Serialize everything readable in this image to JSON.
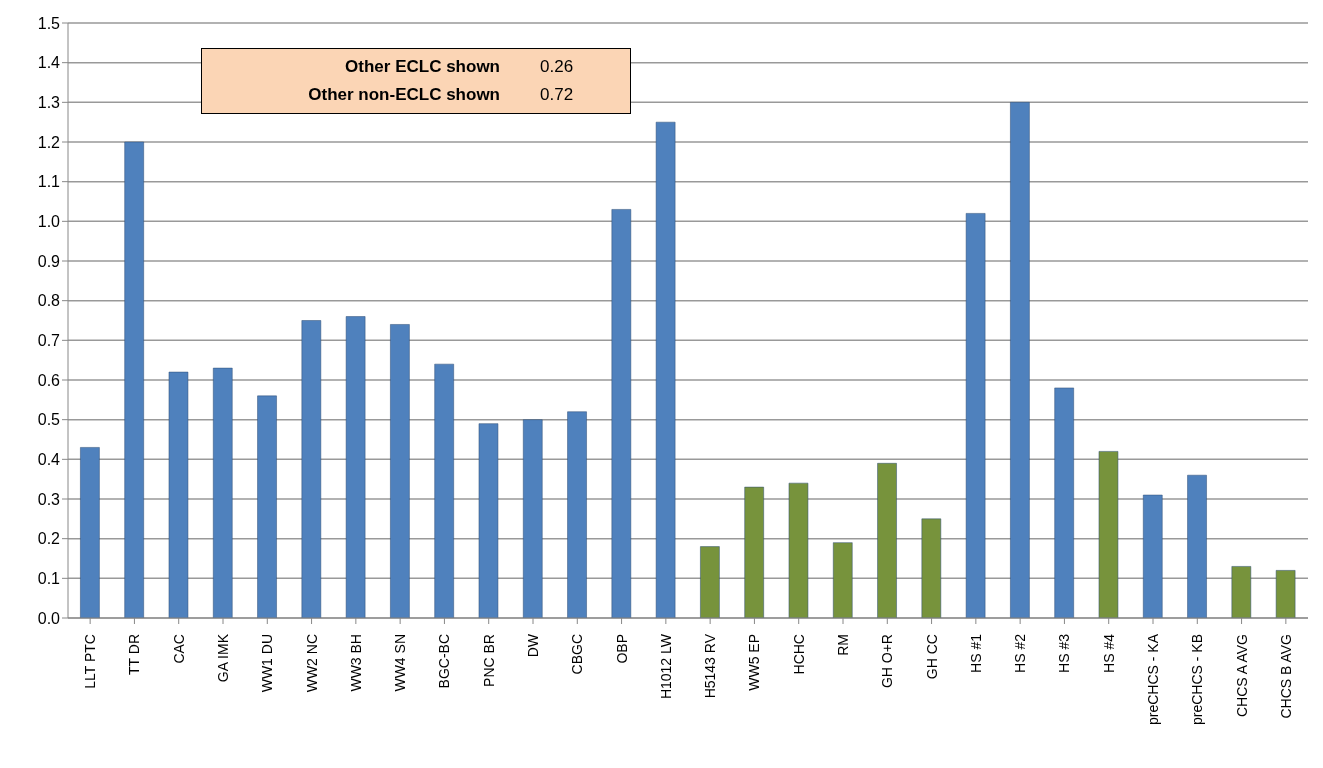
{
  "chart_data": {
    "type": "bar",
    "categories": [
      "LLT PTC",
      "TT DR",
      "CAC",
      "GA IMK",
      "WW1 DU",
      "WW2 NC",
      "WW3 BH",
      "WW4 SN",
      "BGC-BC",
      "PNC BR",
      "DW",
      "CBGC",
      "OBP",
      "H1012 LW",
      "H5143 RV",
      "WW5 EP",
      "HCHC",
      "RM",
      "GH O+R",
      "GH CC",
      "HS #1",
      "HS #2",
      "HS #3",
      "HS #4",
      "preCHCS - KA",
      "preCHCS - KB",
      "CHCS A AVG",
      "CHCS B AVG"
    ],
    "values": [
      0.43,
      1.2,
      0.62,
      0.63,
      0.56,
      0.75,
      0.76,
      0.74,
      0.64,
      0.49,
      0.5,
      0.52,
      1.03,
      1.25,
      0.18,
      0.33,
      0.34,
      0.19,
      0.39,
      0.25,
      1.02,
      1.3,
      0.58,
      0.42,
      0.31,
      0.36,
      0.13,
      0.12
    ],
    "colors": [
      "#4f81bd",
      "#4f81bd",
      "#4f81bd",
      "#4f81bd",
      "#4f81bd",
      "#4f81bd",
      "#4f81bd",
      "#4f81bd",
      "#4f81bd",
      "#4f81bd",
      "#4f81bd",
      "#4f81bd",
      "#4f81bd",
      "#4f81bd",
      "#77933c",
      "#77933c",
      "#77933c",
      "#77933c",
      "#77933c",
      "#77933c",
      "#4f81bd",
      "#4f81bd",
      "#4f81bd",
      "#77933c",
      "#4f81bd",
      "#4f81bd",
      "#77933c",
      "#77933c"
    ],
    "ylim": [
      0,
      1.5
    ],
    "yticks": [
      {
        "value": 0,
        "label": "0.0"
      },
      {
        "value": 0.1,
        "label": "0.1"
      },
      {
        "value": 0.2,
        "label": "0.2"
      },
      {
        "value": 0.3,
        "label": "0.3"
      },
      {
        "value": 0.4,
        "label": "0.4"
      },
      {
        "value": 0.5,
        "label": "0.5"
      },
      {
        "value": 0.6,
        "label": "0.6"
      },
      {
        "value": 0.7,
        "label": "0.7"
      },
      {
        "value": 0.8,
        "label": "0.8"
      },
      {
        "value": 0.9,
        "label": "0.9"
      },
      {
        "value": 1,
        "label": "1.0"
      },
      {
        "value": 1.1,
        "label": "1.1"
      },
      {
        "value": 1.2,
        "label": "1.2"
      },
      {
        "value": 1.3,
        "label": "1.3"
      },
      {
        "value": 1.4,
        "label": "1.4"
      },
      {
        "value": 1.5,
        "label": "1.5"
      }
    ],
    "grid": "y",
    "legend": false,
    "annotations": [
      "Other ECLC shown",
      "0.26",
      "Other non-ECLC shown",
      "0.72"
    ]
  }
}
